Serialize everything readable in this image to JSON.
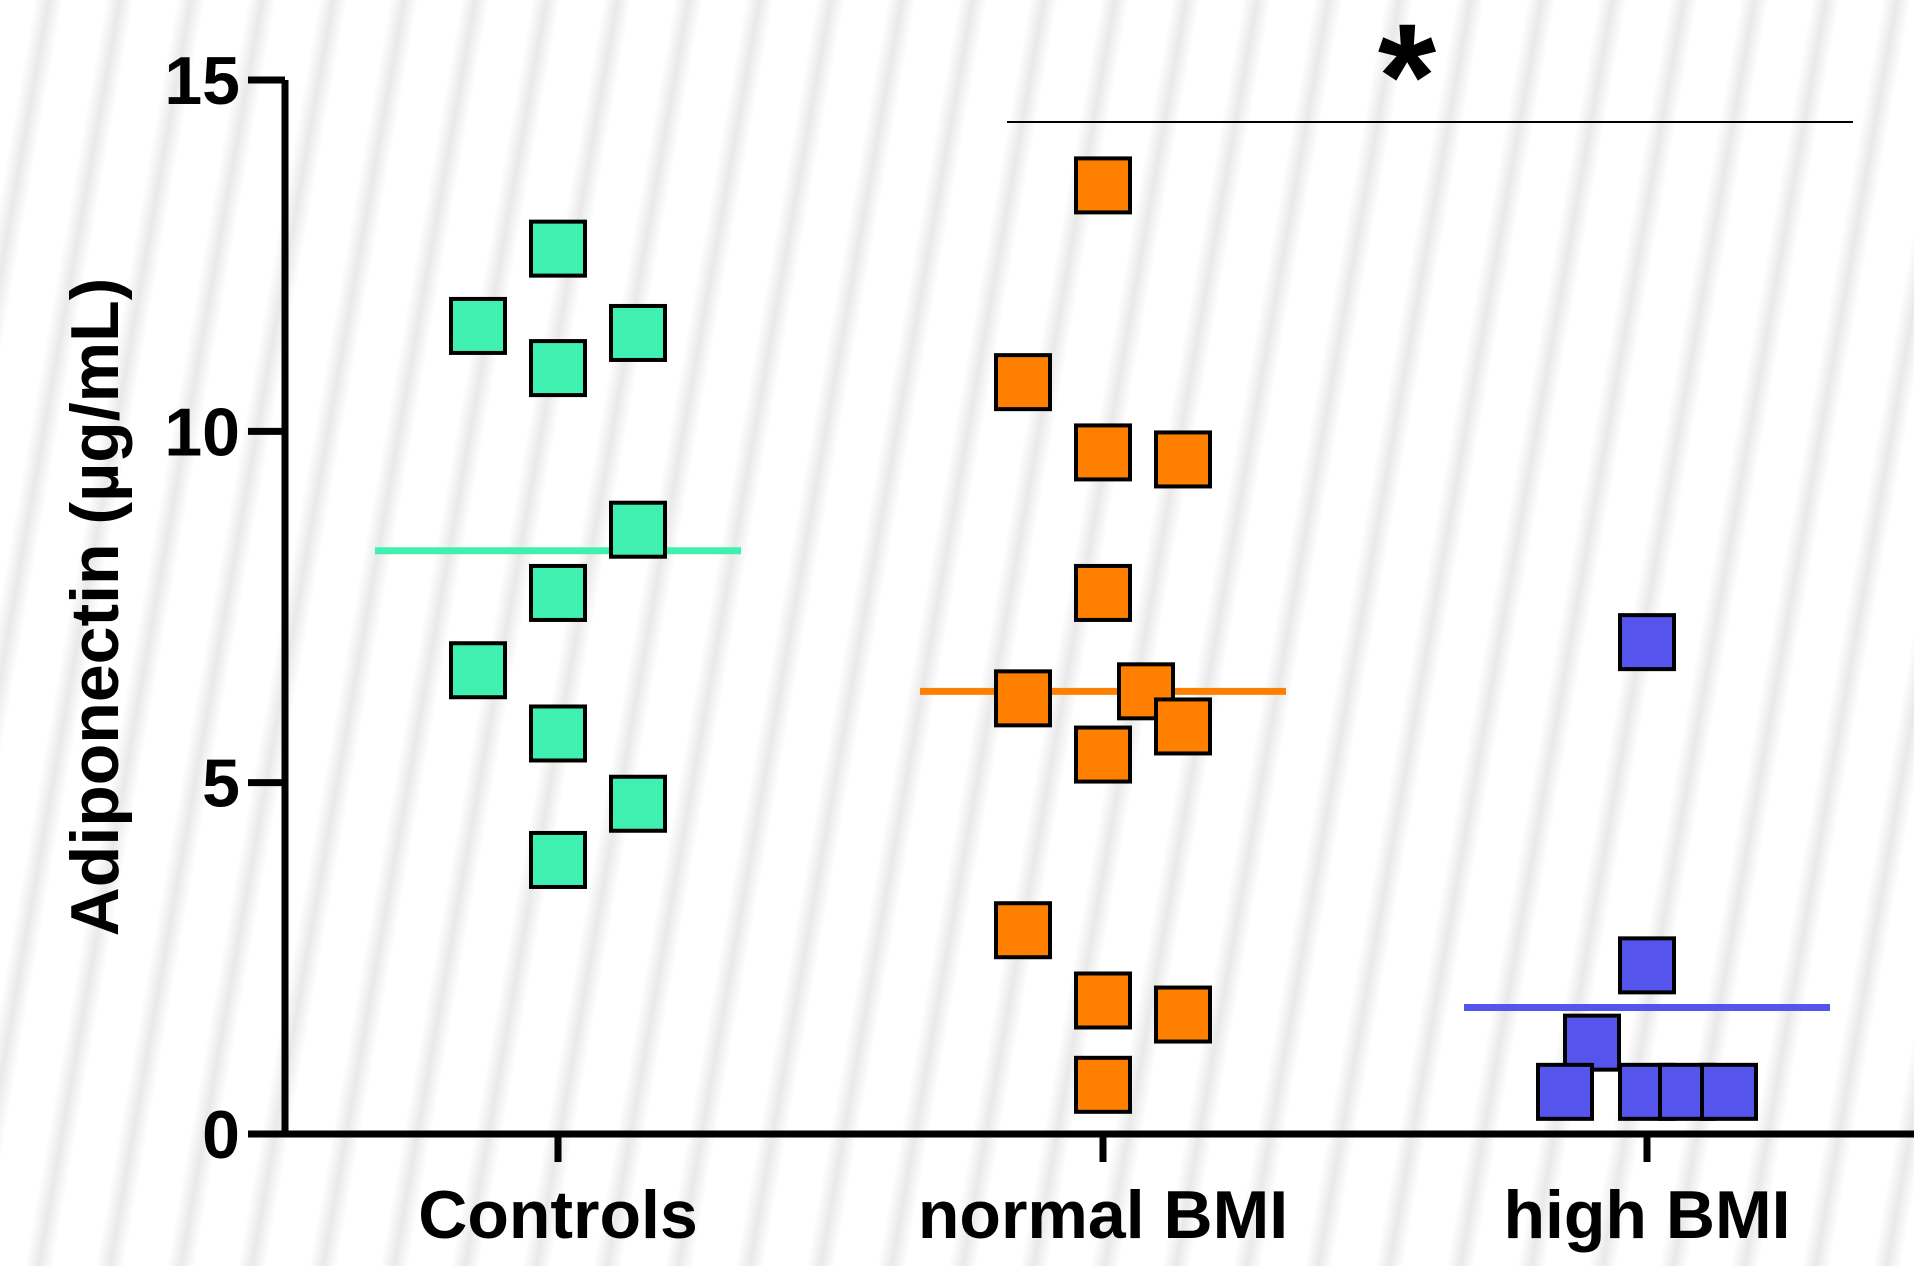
{
  "chart_data": {
    "type": "scatter",
    "ylabel": "Adiponectin (µg/mL)",
    "ylim": [
      0,
      15
    ],
    "yticks": [
      "0",
      "5",
      "10",
      "15"
    ],
    "categories": [
      "Controls",
      "normal BMI",
      "high BMI"
    ],
    "significance": "*",
    "series": [
      {
        "category": "Controls",
        "color": "#40f0b0",
        "mean": 8.3,
        "values": [
          12.6,
          11.5,
          11.4,
          10.9,
          8.6,
          7.7,
          6.6,
          5.7,
          4.7,
          3.9
        ]
      },
      {
        "category": "normal BMI",
        "color": "#ff8000",
        "mean": 6.3,
        "values": [
          13.5,
          10.7,
          9.7,
          9.6,
          7.7,
          6.2,
          6.3,
          5.8,
          5.4,
          2.9,
          1.9,
          1.7,
          0.7
        ]
      },
      {
        "category": "high BMI",
        "color": "#5555ee",
        "mean": 1.8,
        "values": [
          7.0,
          2.4,
          1.3,
          0.6,
          0.6,
          0.6,
          0.6
        ]
      }
    ]
  }
}
